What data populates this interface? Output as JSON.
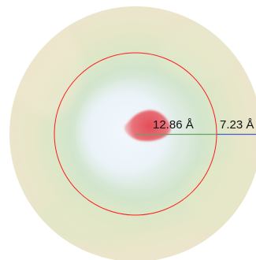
{
  "measurements": {
    "inner_radius_label": "12.86 Å",
    "outer_segment_label": "7.23 Å"
  },
  "colors": {
    "sphere_outer": "#e9e4c8",
    "shell_green": "#cfe1c6",
    "core_light": "#eef5fb",
    "blob_red": "#e2535d",
    "circle_outline": "#ff1a1a",
    "inner_line": "#6aa361",
    "outer_line": "#4a5cc8"
  }
}
